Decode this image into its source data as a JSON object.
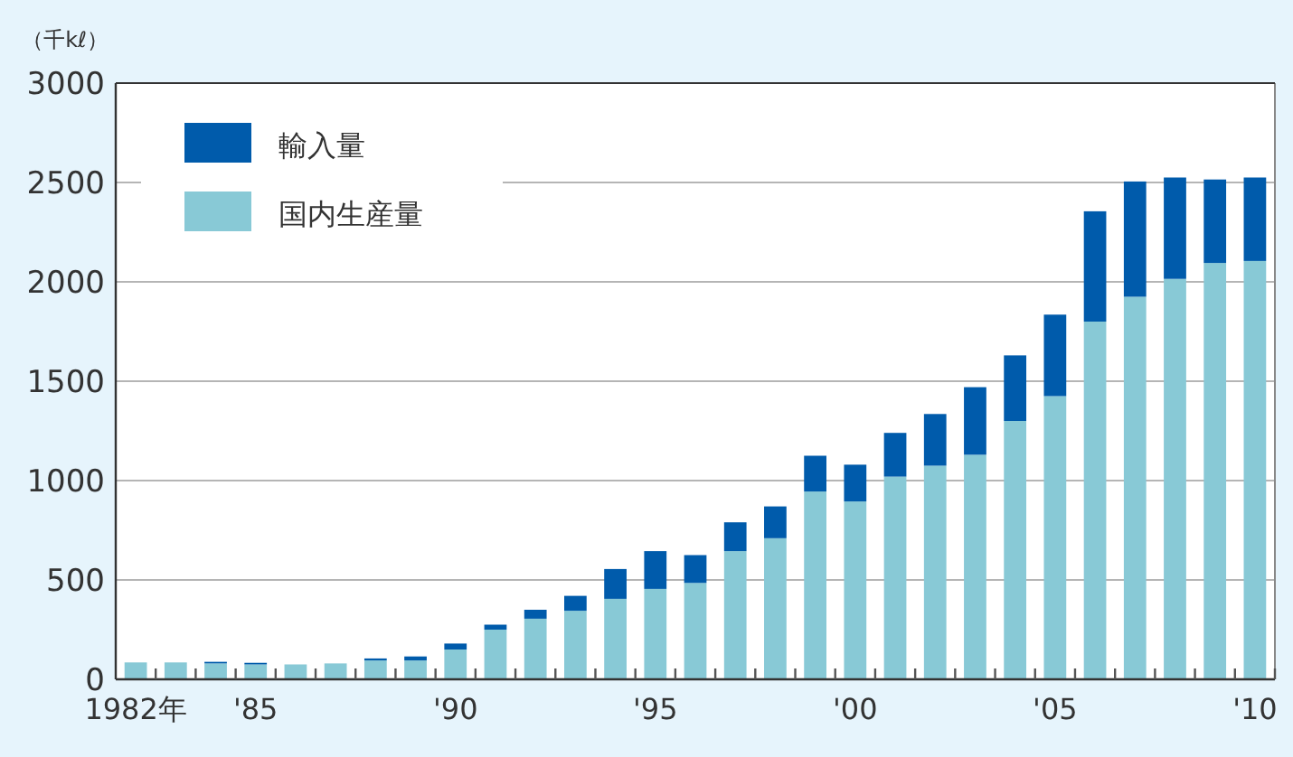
{
  "chart_data": {
    "type": "bar",
    "stacked": true,
    "ylabel": "（千kℓ）",
    "categories": [
      "1982年",
      null,
      null,
      "'85",
      null,
      null,
      null,
      null,
      "'90",
      null,
      null,
      null,
      null,
      "'95",
      null,
      null,
      null,
      null,
      "'00",
      null,
      null,
      null,
      null,
      "'05",
      null,
      null,
      null,
      null,
      "'10"
    ],
    "series": [
      {
        "name": "国内生産量",
        "color": "#88c9d6",
        "values": [
          85,
          85,
          80,
          75,
          75,
          80,
          95,
          95,
          150,
          250,
          305,
          345,
          405,
          455,
          485,
          645,
          710,
          945,
          895,
          1020,
          1075,
          1130,
          1300,
          1425,
          1800,
          1925,
          2015,
          2095,
          2105
        ]
      },
      {
        "name": "輸入量",
        "color": "#005bab",
        "values": [
          0,
          0,
          8,
          8,
          0,
          0,
          10,
          20,
          30,
          25,
          45,
          75,
          150,
          190,
          140,
          145,
          160,
          180,
          185,
          220,
          260,
          340,
          330,
          410,
          555,
          580,
          510,
          420,
          420
        ]
      }
    ],
    "ylim": [
      0,
      3000
    ],
    "yticks": [
      0,
      500,
      1000,
      1500,
      2000,
      2500,
      3000
    ],
    "grid": "y",
    "legend": "top left"
  }
}
